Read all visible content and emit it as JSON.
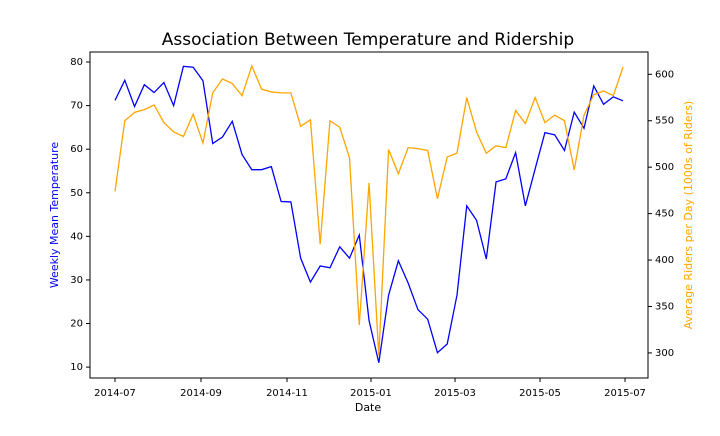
{
  "chart_data": {
    "type": "line",
    "title": "Association Between Temperature and Ridership",
    "xlabel": "Date",
    "ylabel": "Weekly Mean Temperature",
    "y2label": "Average Riders per Day (1000s of Riders)",
    "x": [
      0,
      1,
      2,
      3,
      4,
      5,
      6,
      7,
      8,
      9,
      10,
      11,
      12,
      13,
      14,
      15,
      16,
      17,
      18,
      19,
      20,
      21,
      22,
      23,
      24,
      25,
      26,
      27,
      28,
      29,
      30,
      31,
      32,
      33,
      34,
      35,
      36,
      37,
      38,
      39,
      40,
      41,
      42,
      43,
      44,
      45,
      46,
      47,
      48,
      49,
      50,
      51,
      52
    ],
    "xlim": [
      -2.56,
      54.55
    ],
    "xticks": [
      {
        "value": 0,
        "label": "2014-07"
      },
      {
        "value": 8.8,
        "label": "2014-09"
      },
      {
        "value": 17.6,
        "label": "2014-11"
      },
      {
        "value": 26.2,
        "label": "2015-01"
      },
      {
        "value": 34.8,
        "label": "2015-03"
      },
      {
        "value": 43.5,
        "label": "2015-05"
      },
      {
        "value": 52.2,
        "label": "2015-07"
      }
    ],
    "ylim": [
      7.5,
      82.3
    ],
    "yticks": [
      10,
      20,
      30,
      40,
      50,
      60,
      70,
      80
    ],
    "y2lim": [
      273,
      624
    ],
    "y2ticks": [
      300,
      350,
      400,
      450,
      500,
      550,
      600
    ],
    "series": [
      {
        "name": "Weekly Mean Temperature",
        "color": "blue",
        "axis": "y",
        "values": [
          71.2,
          75.8,
          69.8,
          74.8,
          73,
          75.3,
          70,
          79,
          78.8,
          75.7,
          61.3,
          62.8,
          66.4,
          58.8,
          55.3,
          55.3,
          56,
          48,
          47.9,
          35,
          29.5,
          33.2,
          32.8,
          37.6,
          35,
          40.3,
          20.7,
          11,
          26.5,
          34.4,
          29.3,
          23.2,
          21,
          13.3,
          15.3,
          26.5,
          47,
          43.7,
          34.8,
          52.5,
          53.2,
          59.2,
          47,
          55.5,
          63.8,
          63.3,
          59.7,
          68.5,
          64.8,
          74.5,
          70.3,
          72,
          71.1
        ]
      },
      {
        "name": "Average Riders per Day (1000s of Riders)",
        "color": "orange",
        "axis": "y2",
        "values": [
          474,
          550,
          559,
          562,
          567,
          548,
          538,
          533,
          557,
          526,
          580,
          595,
          590,
          577,
          609,
          584,
          581,
          580,
          580,
          544,
          551,
          417,
          550,
          543,
          510,
          330,
          483,
          297,
          519,
          493,
          521,
          520,
          518,
          466,
          511,
          515,
          575,
          538,
          515,
          523,
          521,
          561,
          547,
          575,
          548,
          556,
          550,
          497,
          556,
          578,
          582,
          577,
          608
        ]
      }
    ]
  }
}
